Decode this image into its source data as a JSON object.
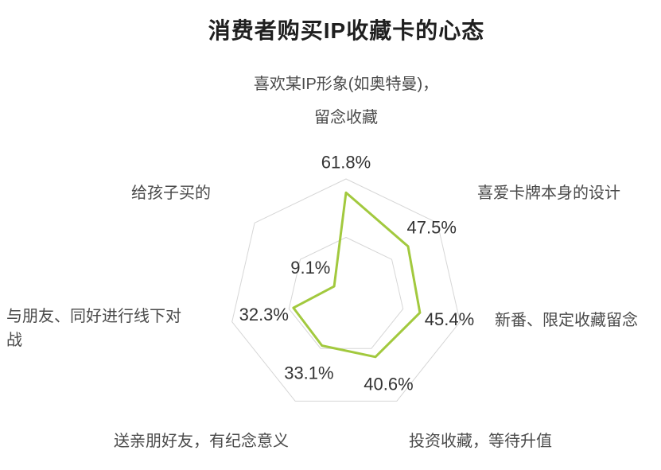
{
  "chart_data": {
    "type": "radar",
    "title": "消费者购买IP收藏卡的心态",
    "categories": [
      "喜欢某IP形象(如奥特曼)，留念收藏",
      "喜爱卡牌本身的设计",
      "新番、限定收藏留念",
      "投资收藏，等待升值",
      "送亲朋好友，有纪念意义",
      "与朋友、同好进行线下对战",
      "给孩子买的"
    ],
    "values": [
      61.8,
      47.5,
      45.4,
      40.6,
      33.1,
      32.3,
      9.1
    ],
    "value_labels": [
      "61.8%",
      "47.5%",
      "45.4%",
      "40.6%",
      "33.1%",
      "32.3%",
      "9.1%"
    ],
    "max": 70,
    "grid_levels": 2,
    "grid_shape": "polygon",
    "start_angle_deg": -90,
    "direction": "clockwise",
    "series_color": "#a2c93e",
    "grid_color": "#d6d6d6",
    "value_label_color": "#333333",
    "axis_label_color": "#4a4a4a",
    "title_color": "#1f1f1f",
    "background_color": "#ffffff",
    "legend": "none"
  }
}
